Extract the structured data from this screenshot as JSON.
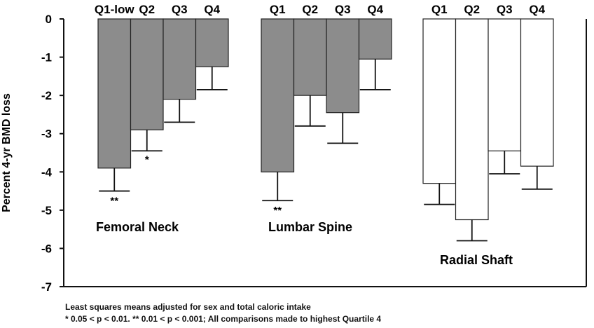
{
  "chart_data": {
    "type": "bar",
    "ylabel": "Percent 4-yr BMD loss",
    "ylim": [
      -7,
      0
    ],
    "yticks": [
      0,
      -1,
      -2,
      -3,
      -4,
      -5,
      -6,
      -7
    ],
    "grid": false,
    "groups": [
      {
        "name": "Femoral Neck",
        "fill": "#8c8c8c",
        "categories": [
          "Q1-low",
          "Q2",
          "Q3",
          "Q4"
        ],
        "values": [
          -3.9,
          -2.9,
          -2.1,
          -1.25
        ],
        "error_low": [
          -4.5,
          -3.45,
          -2.7,
          -1.85
        ],
        "significance": [
          "**",
          "*",
          "",
          ""
        ]
      },
      {
        "name": "Lumbar Spine",
        "fill": "#8c8c8c",
        "categories": [
          "Q1",
          "Q2",
          "Q3",
          "Q4"
        ],
        "values": [
          -4.0,
          -2.0,
          -2.45,
          -1.05
        ],
        "error_low": [
          -4.75,
          -2.8,
          -3.25,
          -1.85
        ],
        "significance": [
          "**",
          "",
          "",
          ""
        ]
      },
      {
        "name": "Radial Shaft",
        "fill": "#ffffff",
        "categories": [
          "Q1",
          "Q2",
          "Q3",
          "Q4"
        ],
        "values": [
          -4.3,
          -5.25,
          -3.45,
          -3.85
        ],
        "error_low": [
          -4.85,
          -5.8,
          -4.05,
          -4.45
        ],
        "significance": [
          "",
          "",
          "",
          ""
        ]
      }
    ]
  },
  "footnotes": {
    "line1": "Least squares means adjusted for sex and total caloric intake",
    "line2": "* 0.05 < p < 0.01.  ** 0.01 < p < 0.001; All comparisons made to highest Quartile 4"
  }
}
